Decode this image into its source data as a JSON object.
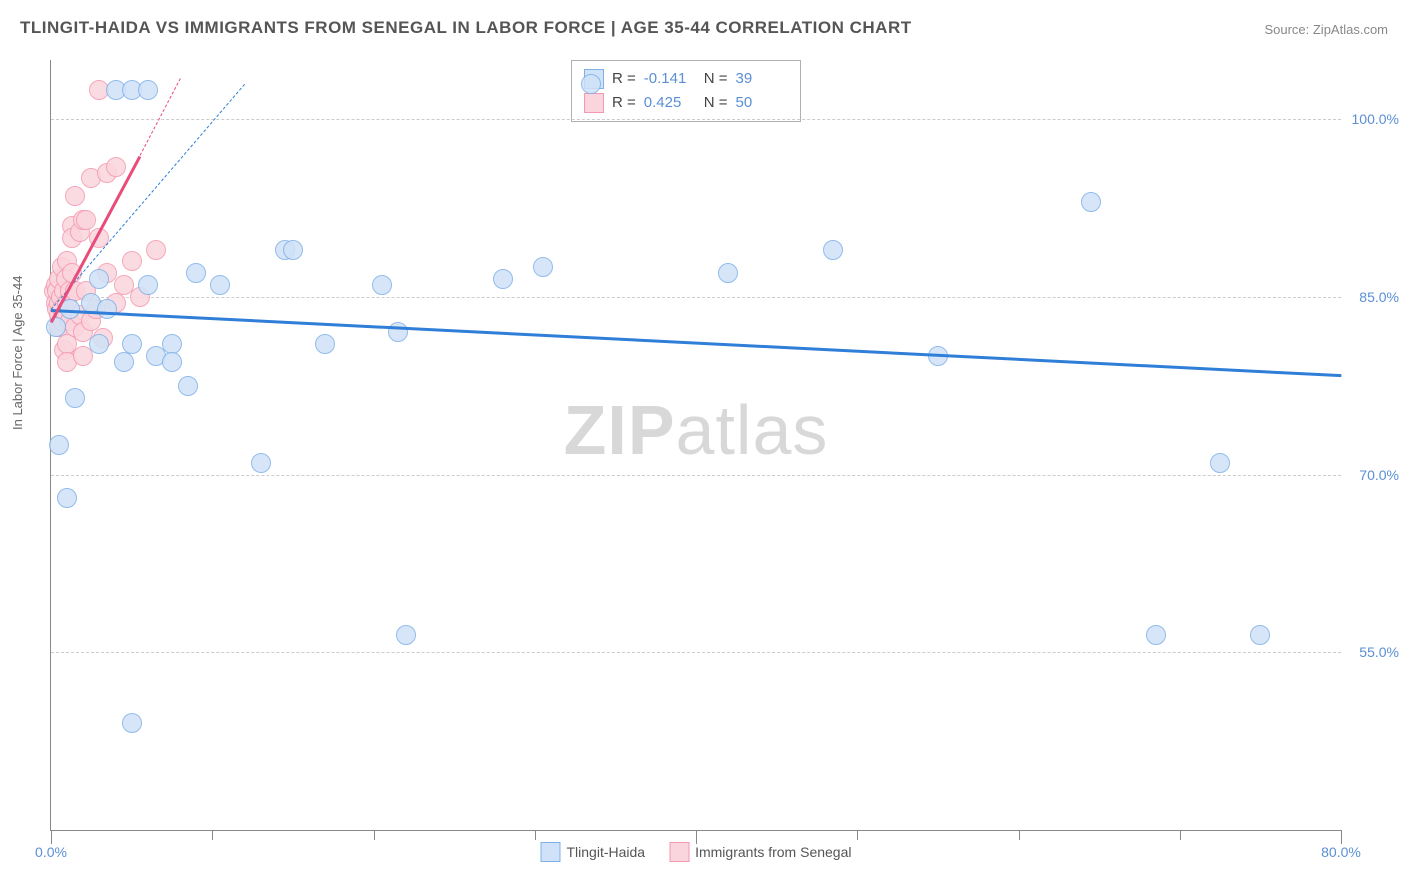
{
  "title": "TLINGIT-HAIDA VS IMMIGRANTS FROM SENEGAL IN LABOR FORCE | AGE 35-44 CORRELATION CHART",
  "source": "Source: ZipAtlas.com",
  "ylabel": "In Labor Force | Age 35-44",
  "watermark_a": "ZIP",
  "watermark_b": "atlas",
  "chart": {
    "type": "scatter",
    "xlim": [
      0,
      80
    ],
    "ylim": [
      40,
      105
    ],
    "y_ticks": [
      55.0,
      70.0,
      85.0,
      100.0
    ],
    "y_tick_labels": [
      "55.0%",
      "70.0%",
      "85.0%",
      "100.0%"
    ],
    "x_ticks": [
      0,
      40,
      80
    ],
    "x_tick_labels": [
      "0.0%",
      "",
      "80.0%"
    ],
    "x_minor_ticks": [
      10,
      20,
      30,
      50,
      60,
      70
    ],
    "background_color": "#ffffff",
    "grid_color": "#cccccc",
    "marker_radius": 9,
    "marker_border": 1.5,
    "series": [
      {
        "name": "Tlingit-Haida",
        "fill": "#cfe2f7",
        "stroke": "#7fb1e8",
        "r_value": "-0.141",
        "n_value": "39",
        "trend_color": "#2f7ed8",
        "trend": {
          "x1": 0,
          "y1": 84.0,
          "x2": 80,
          "y2": 78.5
        },
        "trend_dash": {
          "x1": 0,
          "y1": 84.0,
          "x2": 12,
          "y2": 103
        },
        "points": [
          [
            0.5,
            72.5
          ],
          [
            0.3,
            82.5
          ],
          [
            1.0,
            68.0
          ],
          [
            1.2,
            84.0
          ],
          [
            1.5,
            76.5
          ],
          [
            2.5,
            84.5
          ],
          [
            3.0,
            81.0
          ],
          [
            3.0,
            86.5
          ],
          [
            3.5,
            84.0
          ],
          [
            4.0,
            102.5
          ],
          [
            4.5,
            79.5
          ],
          [
            5.0,
            81.0
          ],
          [
            5.0,
            102.5
          ],
          [
            5.0,
            49.0
          ],
          [
            6.0,
            102.5
          ],
          [
            6.0,
            86.0
          ],
          [
            6.5,
            80.0
          ],
          [
            7.5,
            81.0
          ],
          [
            7.5,
            79.5
          ],
          [
            8.5,
            77.5
          ],
          [
            9.0,
            87.0
          ],
          [
            10.5,
            86.0
          ],
          [
            13.0,
            71.0
          ],
          [
            14.5,
            89.0
          ],
          [
            15.0,
            89.0
          ],
          [
            17.0,
            81.0
          ],
          [
            20.5,
            86.0
          ],
          [
            21.5,
            82.0
          ],
          [
            22.0,
            56.5
          ],
          [
            28.0,
            86.5
          ],
          [
            30.5,
            87.5
          ],
          [
            33.5,
            103.0
          ],
          [
            42.0,
            87.0
          ],
          [
            48.5,
            89.0
          ],
          [
            55.0,
            80.0
          ],
          [
            64.5,
            93.0
          ],
          [
            68.5,
            56.5
          ],
          [
            72.5,
            71.0
          ],
          [
            75.0,
            56.5
          ]
        ]
      },
      {
        "name": "Immigrants from Senegal",
        "fill": "#fbd5dd",
        "stroke": "#f39ab0",
        "r_value": "0.425",
        "n_value": "50",
        "trend_color": "#e84c7a",
        "trend": {
          "x1": 0,
          "y1": 83.0,
          "x2": 5.5,
          "y2": 97.0
        },
        "trend_dash": {
          "x1": 5.5,
          "y1": 97.0,
          "x2": 8.0,
          "y2": 103.5
        },
        "points": [
          [
            0.2,
            85.5
          ],
          [
            0.3,
            84.5
          ],
          [
            0.3,
            86.0
          ],
          [
            0.4,
            84.0
          ],
          [
            0.4,
            85.5
          ],
          [
            0.5,
            82.5
          ],
          [
            0.5,
            83.5
          ],
          [
            0.5,
            84.5
          ],
          [
            0.5,
            86.5
          ],
          [
            0.6,
            85.0
          ],
          [
            0.7,
            83.0
          ],
          [
            0.7,
            84.0
          ],
          [
            0.7,
            87.5
          ],
          [
            0.8,
            80.5
          ],
          [
            0.8,
            85.5
          ],
          [
            0.9,
            83.5
          ],
          [
            0.9,
            86.5
          ],
          [
            1.0,
            81.0
          ],
          [
            1.0,
            84.5
          ],
          [
            1.0,
            88.0
          ],
          [
            1.0,
            79.5
          ],
          [
            1.2,
            85.5
          ],
          [
            1.2,
            83.0
          ],
          [
            1.3,
            87.0
          ],
          [
            1.3,
            91.0
          ],
          [
            1.3,
            90.0
          ],
          [
            1.5,
            82.5
          ],
          [
            1.5,
            85.5
          ],
          [
            1.5,
            93.5
          ],
          [
            1.8,
            83.5
          ],
          [
            1.8,
            90.5
          ],
          [
            2.0,
            82.0
          ],
          [
            2.0,
            91.5
          ],
          [
            2.0,
            80.0
          ],
          [
            2.2,
            85.5
          ],
          [
            2.2,
            91.5
          ],
          [
            2.5,
            95.0
          ],
          [
            2.5,
            83.0
          ],
          [
            2.8,
            84.0
          ],
          [
            3.0,
            102.5
          ],
          [
            3.0,
            90.0
          ],
          [
            3.2,
            81.5
          ],
          [
            3.5,
            95.5
          ],
          [
            3.5,
            87.0
          ],
          [
            4.0,
            96.0
          ],
          [
            4.0,
            84.5
          ],
          [
            4.5,
            86.0
          ],
          [
            5.0,
            88.0
          ],
          [
            5.5,
            85.0
          ],
          [
            6.5,
            89.0
          ]
        ]
      }
    ]
  },
  "legend_bottom": [
    {
      "label": "Tlingit-Haida",
      "fill": "#cfe2f7",
      "stroke": "#7fb1e8"
    },
    {
      "label": "Immigrants from Senegal",
      "fill": "#fbd5dd",
      "stroke": "#f39ab0"
    }
  ]
}
